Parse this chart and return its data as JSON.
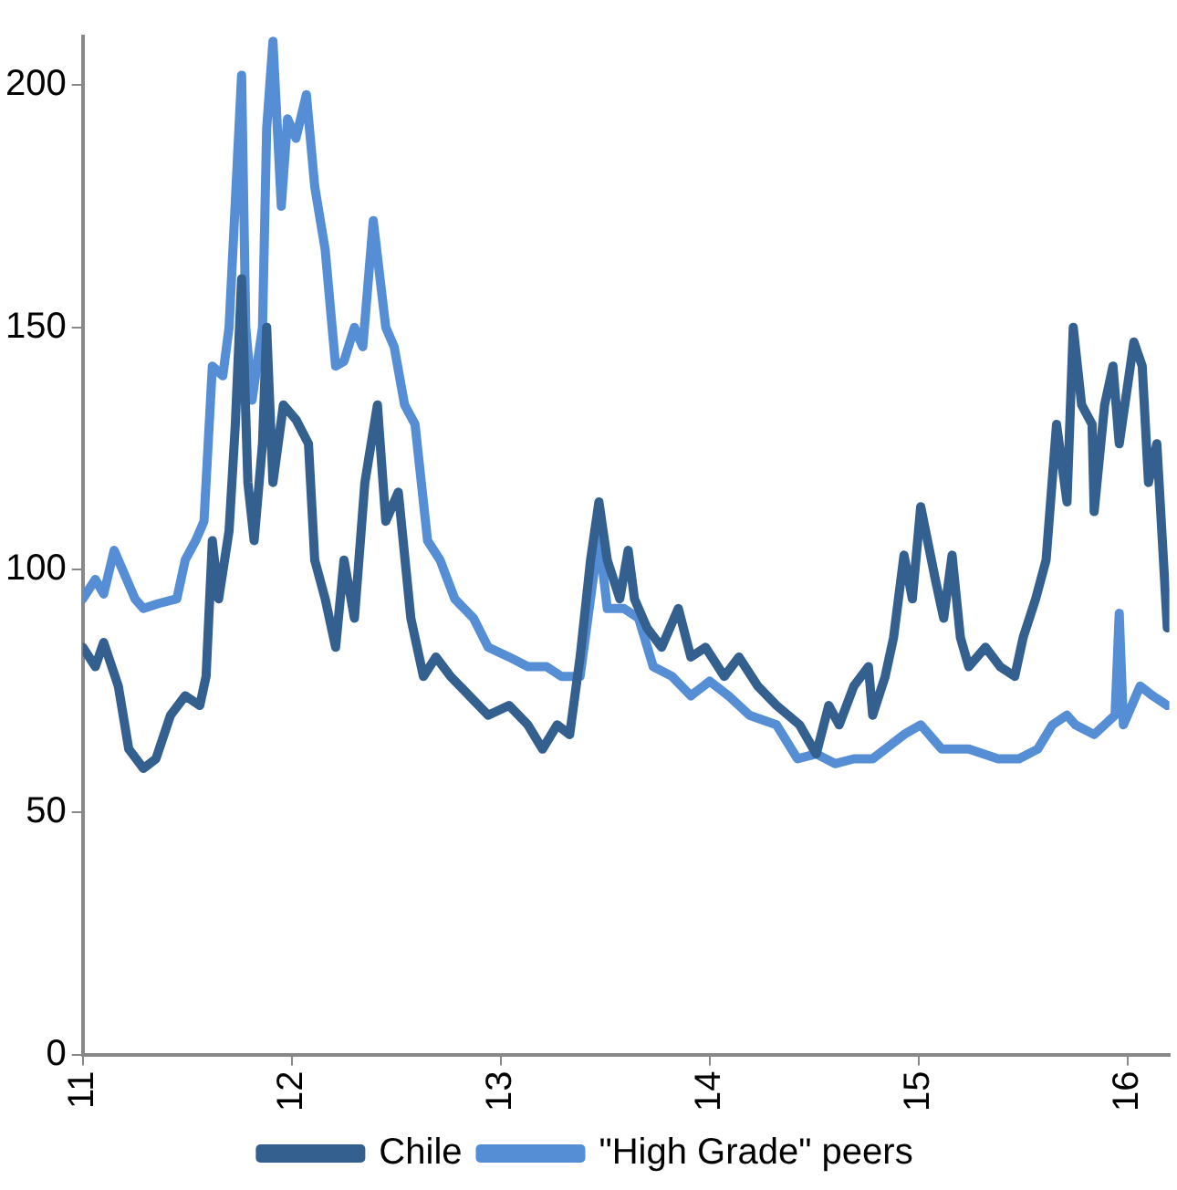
{
  "chart_data": {
    "type": "line",
    "xlim": [
      11,
      16.2
    ],
    "xticks": [
      11,
      12,
      13,
      14,
      15,
      16
    ],
    "ylim": [
      0,
      210
    ],
    "yticks": [
      0,
      50,
      100,
      150,
      200
    ],
    "grid": false,
    "legend": "bottom",
    "marker": "none",
    "line_style": "solid",
    "series": [
      {
        "name": "Chile",
        "color": "#34608f",
        "x": [
          11.0,
          11.06,
          11.1,
          11.17,
          11.22,
          11.29,
          11.35,
          11.42,
          11.49,
          11.56,
          11.59,
          11.62,
          11.65,
          11.7,
          11.73,
          11.76,
          11.79,
          11.82,
          11.86,
          11.88,
          11.91,
          11.96,
          12.02,
          12.08,
          12.11,
          12.16,
          12.21,
          12.25,
          12.3,
          12.35,
          12.41,
          12.45,
          12.51,
          12.57,
          12.63,
          12.69,
          12.76,
          12.85,
          12.94,
          13.04,
          13.13,
          13.2,
          13.27,
          13.33,
          13.38,
          13.43,
          13.47,
          13.51,
          13.57,
          13.61,
          13.64,
          13.7,
          13.77,
          13.85,
          13.91,
          13.98,
          14.07,
          14.14,
          14.23,
          14.32,
          14.43,
          14.51,
          14.57,
          14.62,
          14.69,
          14.76,
          14.78,
          14.84,
          14.88,
          14.93,
          14.97,
          15.01,
          15.08,
          15.12,
          15.16,
          15.2,
          15.24,
          15.32,
          15.39,
          15.46,
          15.5,
          15.56,
          15.61,
          15.66,
          15.71,
          15.74,
          15.78,
          15.83,
          15.84,
          15.89,
          15.93,
          15.96,
          16.03,
          16.07,
          16.1,
          16.14,
          16.19
        ],
        "values": [
          84,
          80,
          85,
          76,
          63,
          59,
          61,
          70,
          74,
          72,
          78,
          106,
          94,
          108,
          130,
          160,
          118,
          106,
          126,
          150,
          118,
          134,
          131,
          126,
          102,
          94,
          84,
          102,
          90,
          118,
          134,
          110,
          116,
          90,
          78,
          82,
          78,
          74,
          70,
          72,
          68,
          63,
          68,
          66,
          82,
          102,
          114,
          102,
          94,
          104,
          94,
          88,
          84,
          92,
          82,
          84,
          78,
          82,
          76,
          72,
          68,
          62,
          72,
          68,
          76,
          80,
          70,
          78,
          86,
          103,
          94,
          113,
          98,
          90,
          103,
          86,
          80,
          84,
          80,
          78,
          86,
          94,
          102,
          130,
          114,
          150,
          134,
          130,
          112,
          134,
          142,
          126,
          147,
          142,
          118,
          126,
          88
        ]
      },
      {
        "name": "\"High Grade\" peers",
        "color": "#558ed5",
        "x": [
          11.0,
          11.06,
          11.1,
          11.15,
          11.19,
          11.25,
          11.29,
          11.36,
          11.45,
          11.49,
          11.54,
          11.58,
          11.62,
          11.67,
          11.7,
          11.76,
          11.78,
          11.81,
          11.86,
          11.88,
          11.91,
          11.95,
          11.98,
          12.02,
          12.07,
          12.11,
          12.16,
          12.21,
          12.25,
          12.3,
          12.34,
          12.39,
          12.45,
          12.49,
          12.54,
          12.59,
          12.65,
          12.71,
          12.78,
          12.87,
          12.94,
          13.04,
          13.13,
          13.22,
          13.29,
          13.38,
          13.47,
          13.51,
          13.59,
          13.66,
          13.73,
          13.82,
          13.91,
          14.0,
          14.09,
          14.19,
          14.32,
          14.42,
          14.51,
          14.6,
          14.69,
          14.78,
          14.93,
          15.01,
          15.11,
          15.24,
          15.38,
          15.48,
          15.57,
          15.64,
          15.71,
          15.75,
          15.84,
          15.94,
          15.96,
          15.98,
          16.06,
          16.12,
          16.19
        ],
        "values": [
          94,
          98,
          95,
          104,
          100,
          94,
          92,
          93,
          94,
          102,
          106,
          110,
          142,
          140,
          150,
          202,
          150,
          135,
          150,
          191,
          209,
          175,
          193,
          189,
          198,
          179,
          166,
          142,
          143,
          150,
          146,
          172,
          150,
          146,
          134,
          130,
          106,
          102,
          94,
          90,
          84,
          82,
          80,
          80,
          78,
          78,
          107,
          92,
          92,
          90,
          80,
          78,
          74,
          77,
          74,
          70,
          68,
          61,
          62,
          60,
          61,
          61,
          66,
          68,
          63,
          63,
          61,
          61,
          63,
          68,
          70,
          68,
          66,
          70,
          91,
          68,
          76,
          74,
          72
        ]
      }
    ]
  }
}
